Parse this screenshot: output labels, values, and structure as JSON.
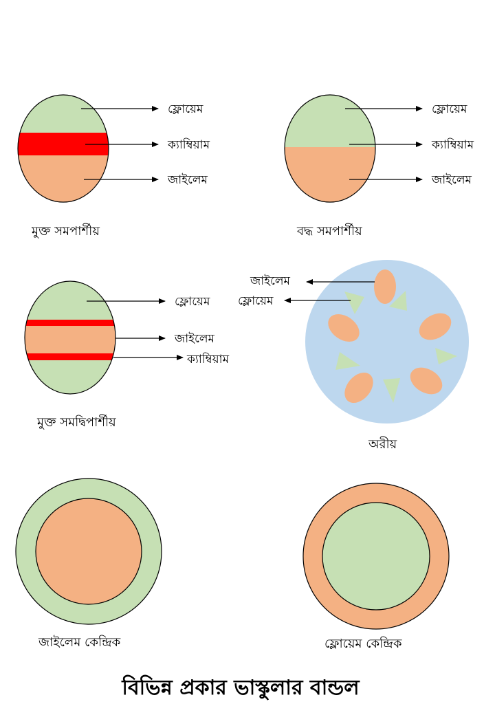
{
  "colors": {
    "phloem": "#c6e0b4",
    "xylem": "#f4b183",
    "cambium": "#ff0000",
    "radial_bg": "#bdd7ee",
    "outline": "#000000"
  },
  "labels": {
    "phloem": "ফ্লোয়েম",
    "cambium": "ক্যাম্বিয়াম",
    "xylem": "জাইলেম"
  },
  "captions": {
    "open_collateral": "মুক্ত সমপার্শীয়",
    "closed_collateral": "বদ্ধ সমপার্শীয়",
    "bicollateral": "মুক্ত সমদ্বিপার্শীয়",
    "radial": "অরীয়",
    "amphivasal": "জাইলেম কেন্দ্রিক",
    "amphicribral": "ফ্লোয়েম কেন্দ্রিক"
  },
  "title": "বিভিন্ন প্রকার ভাস্কুলার বান্ডল"
}
